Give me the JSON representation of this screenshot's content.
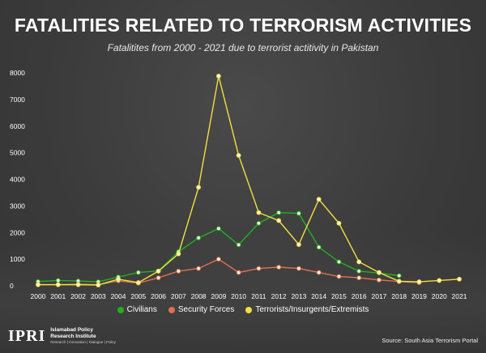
{
  "header": {
    "title": "FATALITIES RELATED TO TERRORISM ACTIVITIES",
    "subtitle": "Fatalitites from 2000 - 2021 due to terrorist actitivity in Pakistan"
  },
  "footer": {
    "logo_mark": "IPRI",
    "logo_line1": "Islamabad Policy",
    "logo_line2": "Research Institute",
    "logo_tagline": "Research | Innovation | Dialogue | Policy",
    "source": "Source: South Asia Terrorism Portal"
  },
  "chart_data": {
    "type": "line",
    "title": "FATALITIES RELATED TO TERRORISM ACTIVITIES",
    "subtitle": "Fatalitites from 2000 - 2021 due to terrorist actitivity in Pakistan",
    "xlabel": "",
    "ylabel": "",
    "ylim": [
      0,
      8000
    ],
    "yticks": [
      0,
      1000,
      2000,
      3000,
      4000,
      5000,
      6000,
      7000,
      8000
    ],
    "grid": false,
    "legend_position": "bottom",
    "categories": [
      "2000",
      "2001",
      "2002",
      "2003",
      "2004",
      "2005",
      "2006",
      "2007",
      "2008",
      "2009",
      "2010",
      "2011",
      "2012",
      "2013",
      "2014",
      "2015",
      "2016",
      "2017",
      "2018",
      "2019",
      "2020",
      "2021"
    ],
    "series": [
      {
        "name": "Civilians",
        "color": "#22b022",
        "values": [
          160,
          200,
          180,
          150,
          330,
          500,
          560,
          1280,
          1800,
          2150,
          1540,
          2350,
          2750,
          2720,
          1450,
          900,
          550,
          480,
          380,
          null,
          null,
          null
        ]
      },
      {
        "name": "Security Forces",
        "color": "#e07050",
        "values": [
          50,
          50,
          60,
          40,
          190,
          100,
          300,
          550,
          650,
          1000,
          500,
          650,
          700,
          650,
          500,
          350,
          300,
          220,
          160,
          120,
          null,
          null
        ]
      },
      {
        "name": "Terrorists/Insurgents/Extremists",
        "color": "#f0e040",
        "values": [
          40,
          40,
          40,
          30,
          250,
          120,
          550,
          1200,
          3700,
          7880,
          4900,
          2750,
          2450,
          1550,
          3250,
          2350,
          900,
          500,
          170,
          150,
          200,
          250
        ]
      }
    ]
  }
}
